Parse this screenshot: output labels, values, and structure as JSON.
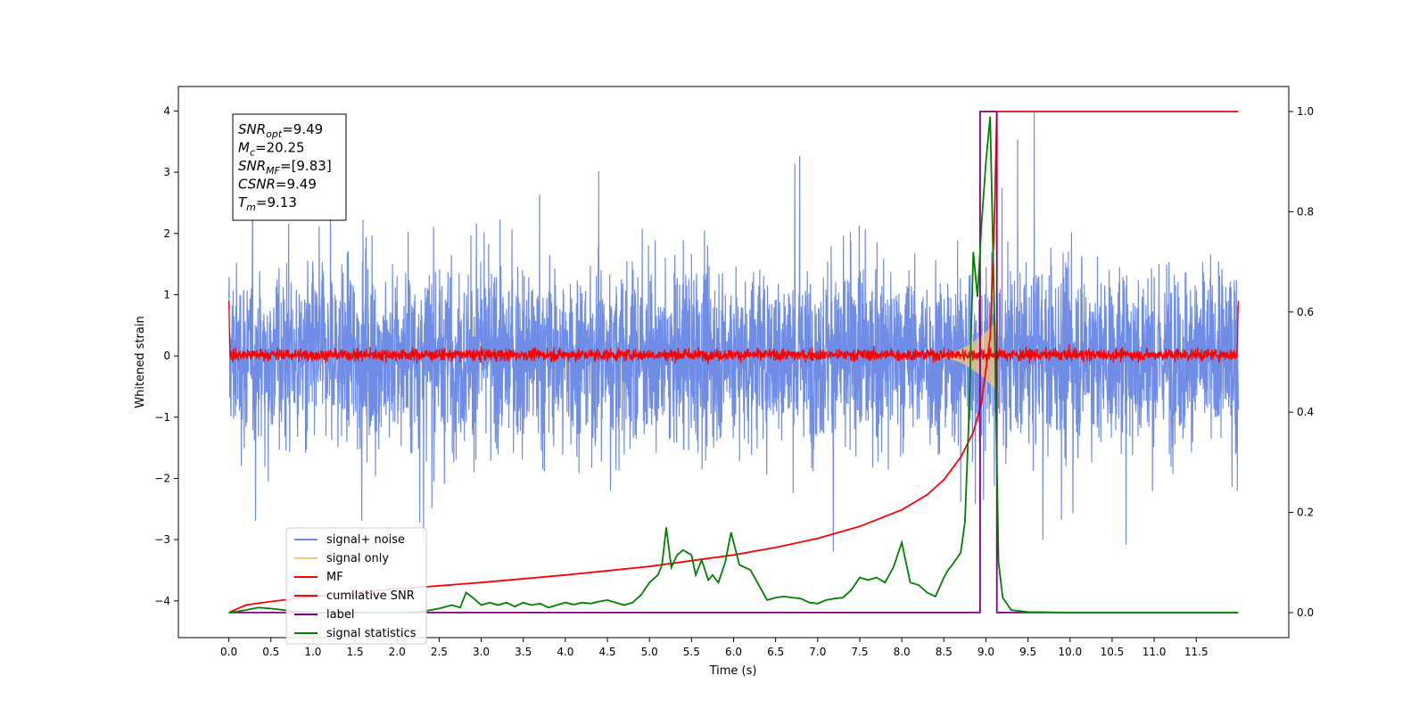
{
  "chart_data": {
    "type": "line",
    "xlabel": "Time (s)",
    "ylabel": "Whitened strain",
    "xlim": [
      -0.6,
      12.6
    ],
    "ylim_left": [
      -4.6,
      4.4
    ],
    "ylim_right": [
      -0.05,
      1.05
    ],
    "x_ticks": [
      0.0,
      0.5,
      1.0,
      1.5,
      2.0,
      2.5,
      3.0,
      3.5,
      4.0,
      4.5,
      5.0,
      5.5,
      6.0,
      6.5,
      7.0,
      7.5,
      8.0,
      8.5,
      9.0,
      9.5,
      10.0,
      10.5,
      11.0,
      11.5
    ],
    "x_tick_labels": [
      "0.0",
      "0.5",
      "1.0",
      "1.5",
      "2.0",
      "2.5",
      "3.0",
      "3.5",
      "4.0",
      "4.5",
      "5.0",
      "5.5",
      "6.0",
      "6.5",
      "7.0",
      "7.5",
      "8.0",
      "8.5",
      "9.0",
      "9.5",
      "10.0",
      "10.5",
      "11.0",
      "11.5"
    ],
    "y_left_ticks": [
      4,
      3,
      2,
      1,
      0,
      -1,
      -2,
      -3,
      -4
    ],
    "y_left_tick_labels": [
      "4",
      "3",
      "2",
      "1",
      "0",
      "−1",
      "−2",
      "−3",
      "−4"
    ],
    "y_right_ticks": [
      1.0,
      0.8,
      0.6,
      0.4,
      0.2,
      0.0
    ],
    "y_right_tick_labels": [
      "1.0",
      "0.8",
      "0.6",
      "0.4",
      "0.2",
      "0.0"
    ],
    "grid": false,
    "legend_position": "lower-left",
    "annotation": {
      "lines": [
        {
          "base": "SNR",
          "sub": "opt",
          "value": "=9.49"
        },
        {
          "base": "M",
          "sub": "c",
          "value": "=20.25"
        },
        {
          "base": "SNR",
          "sub": "MF",
          "value": "=[9.83]"
        },
        {
          "base": "CSNR",
          "sub": "",
          "value": "=9.49"
        },
        {
          "base": "T",
          "sub": "m",
          "value": "=9.13"
        }
      ]
    },
    "series": [
      {
        "name": "signal+ noise",
        "color": "#6f8de6",
        "axis": "left",
        "note_amplitude": [
          -3.6,
          4.0
        ],
        "x_range": [
          0.0,
          12.0
        ]
      },
      {
        "name": "signal only",
        "color": "#f5c77a",
        "axis": "left",
        "x_range": [
          8.3,
          9.15
        ],
        "peak_amplitude": 0.6
      },
      {
        "name": "MF",
        "color": "#ff0000",
        "axis": "left",
        "x_range": [
          0.0,
          12.0
        ],
        "note_amplitude": [
          -0.15,
          0.3
        ]
      },
      {
        "name": "cumilative SNR",
        "color": "#ff0000",
        "axis": "right",
        "x": [
          0.0,
          0.2,
          0.5,
          1.0,
          1.5,
          2.0,
          3.0,
          4.0,
          5.0,
          6.0,
          6.5,
          7.0,
          7.5,
          8.0,
          8.3,
          8.5,
          8.7,
          8.85,
          8.95,
          9.05,
          9.1,
          9.13,
          12.0
        ],
        "values": [
          0.0,
          0.015,
          0.022,
          0.032,
          0.04,
          0.047,
          0.06,
          0.075,
          0.092,
          0.115,
          0.13,
          0.148,
          0.172,
          0.205,
          0.235,
          0.265,
          0.31,
          0.36,
          0.42,
          0.55,
          0.78,
          1.0,
          1.0
        ]
      },
      {
        "name": "label",
        "color": "#800080",
        "axis": "right",
        "x": [
          0.0,
          8.93,
          8.93,
          9.13,
          9.13,
          12.0
        ],
        "values": [
          0.0,
          0.0,
          1.0,
          1.0,
          0.0,
          0.0
        ]
      },
      {
        "name": "signal statistics",
        "color": "#008000",
        "axis": "right",
        "x": [
          0.0,
          0.1,
          0.2,
          0.35,
          0.5,
          0.7,
          1.0,
          1.3,
          1.6,
          2.0,
          2.3,
          2.5,
          2.65,
          2.75,
          2.82,
          2.9,
          3.0,
          3.1,
          3.2,
          3.3,
          3.4,
          3.5,
          3.6,
          3.7,
          3.8,
          3.9,
          4.0,
          4.1,
          4.2,
          4.3,
          4.4,
          4.5,
          4.6,
          4.7,
          4.8,
          4.9,
          5.0,
          5.1,
          5.15,
          5.2,
          5.26,
          5.33,
          5.4,
          5.5,
          5.55,
          5.62,
          5.7,
          5.75,
          5.82,
          5.9,
          5.97,
          6.07,
          6.2,
          6.3,
          6.4,
          6.5,
          6.6,
          6.7,
          6.8,
          6.9,
          7.0,
          7.1,
          7.2,
          7.3,
          7.4,
          7.5,
          7.6,
          7.7,
          7.8,
          7.9,
          8.0,
          8.1,
          8.2,
          8.3,
          8.4,
          8.5,
          8.55,
          8.6,
          8.7,
          8.75,
          8.8,
          8.85,
          8.9,
          8.95,
          9.0,
          9.05,
          9.1,
          9.15,
          9.2,
          9.3,
          9.5,
          10.0,
          11.0,
          12.0
        ],
        "values": [
          0.0,
          0.002,
          0.005,
          0.01,
          0.008,
          0.004,
          0.0,
          0.0,
          0.0,
          0.0,
          0.002,
          0.008,
          0.015,
          0.01,
          0.04,
          0.03,
          0.015,
          0.02,
          0.015,
          0.02,
          0.012,
          0.02,
          0.015,
          0.018,
          0.01,
          0.015,
          0.02,
          0.016,
          0.02,
          0.018,
          0.022,
          0.025,
          0.02,
          0.015,
          0.02,
          0.035,
          0.06,
          0.075,
          0.095,
          0.17,
          0.09,
          0.115,
          0.125,
          0.115,
          0.075,
          0.105,
          0.065,
          0.075,
          0.06,
          0.1,
          0.16,
          0.095,
          0.085,
          0.055,
          0.025,
          0.03,
          0.032,
          0.03,
          0.028,
          0.02,
          0.018,
          0.025,
          0.028,
          0.03,
          0.045,
          0.07,
          0.065,
          0.07,
          0.06,
          0.09,
          0.14,
          0.06,
          0.055,
          0.04,
          0.032,
          0.07,
          0.085,
          0.095,
          0.12,
          0.18,
          0.4,
          0.72,
          0.63,
          0.78,
          0.9,
          0.99,
          0.6,
          0.1,
          0.03,
          0.005,
          0.001,
          0.0,
          0.0,
          0.0
        ]
      }
    ]
  }
}
